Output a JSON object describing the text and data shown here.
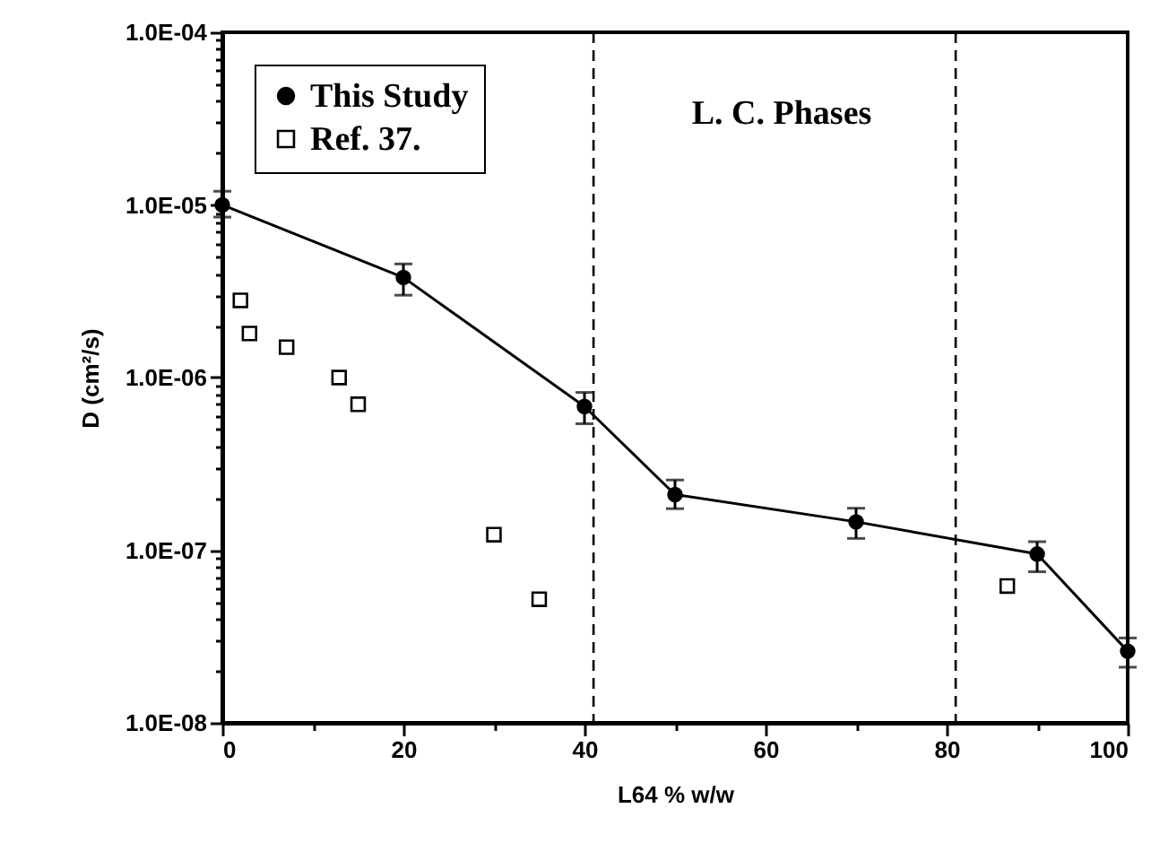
{
  "chart_data": {
    "type": "line",
    "xlabel": "L64 % w/w",
    "ylabel": "D (cm²/s)",
    "log": "y",
    "grid": false,
    "legend": "top left",
    "line_style": "solid",
    "annotations": [
      "L. C. Phases"
    ],
    "xlim": [
      0,
      100
    ],
    "xticks": [
      0,
      {
        "value": 10,
        "label": null
      },
      20,
      {
        "value": 30,
        "label": null
      },
      40,
      {
        "value": 50,
        "label": null
      },
      60,
      {
        "value": 70,
        "label": null
      },
      80,
      {
        "value": 90,
        "label": null
      },
      100
    ],
    "ylim": [
      1e-08,
      0.0001
    ],
    "yticks": [
      {
        "value": 1e-08,
        "label": "1.0E-08"
      },
      {
        "value": 2e-08,
        "label": null
      },
      {
        "value": 3e-08,
        "label": null
      },
      {
        "value": 4e-08,
        "label": null
      },
      {
        "value": 5e-08,
        "label": null
      },
      {
        "value": 6e-08,
        "label": null
      },
      {
        "value": 7e-08,
        "label": null
      },
      {
        "value": 8e-08,
        "label": null
      },
      {
        "value": 9e-08,
        "label": null
      },
      {
        "value": 1e-07,
        "label": "1.0E-07"
      },
      {
        "value": 2e-07,
        "label": null
      },
      {
        "value": 3e-07,
        "label": null
      },
      {
        "value": 4e-07,
        "label": null
      },
      {
        "value": 5e-07,
        "label": null
      },
      {
        "value": 6e-07,
        "label": null
      },
      {
        "value": 7e-07,
        "label": null
      },
      {
        "value": 8e-07,
        "label": null
      },
      {
        "value": 9e-07,
        "label": null
      },
      {
        "value": 1e-06,
        "label": "1.0E-06"
      },
      {
        "value": 2e-06,
        "label": null
      },
      {
        "value": 3e-06,
        "label": null
      },
      {
        "value": 4e-06,
        "label": null
      },
      {
        "value": 5e-06,
        "label": null
      },
      {
        "value": 6e-06,
        "label": null
      },
      {
        "value": 7e-06,
        "label": null
      },
      {
        "value": 8e-06,
        "label": null
      },
      {
        "value": 9e-06,
        "label": null
      },
      {
        "value": 1e-05,
        "label": "1.0E-05"
      },
      {
        "value": 2e-05,
        "label": null
      },
      {
        "value": 3e-05,
        "label": null
      },
      {
        "value": 4e-05,
        "label": null
      },
      {
        "value": 5e-05,
        "label": null
      },
      {
        "value": 6e-05,
        "label": null
      },
      {
        "value": 7e-05,
        "label": null
      },
      {
        "value": 8e-05,
        "label": null
      },
      {
        "value": 9e-05,
        "label": null
      },
      {
        "value": 0.0001,
        "label": "1.0E-04"
      }
    ],
    "ref_lines": [
      {
        "axis": "x",
        "value": 41,
        "label": null,
        "color": "#000000",
        "line_style": "dashed"
      },
      {
        "axis": "x",
        "value": 81,
        "label": null,
        "color": "#000000",
        "line_style": "dashed"
      }
    ],
    "series": [
      {
        "name": "This Study",
        "marker": "circle",
        "color": "#000000",
        "x": [
          0,
          20,
          40,
          50,
          70,
          90,
          100
        ],
        "values": [
          1e-05,
          3.8e-06,
          6.8e-07,
          2.1e-07,
          1.46e-07,
          9.5e-08,
          2.6e-08
        ],
        "errors": [
          [
            8.5e-06,
            1.2e-05
          ],
          [
            3e-06,
            4.55e-06
          ],
          [
            5.4e-07,
            8.2e-07
          ],
          [
            1.74e-07,
            2.55e-07
          ],
          [
            1.17e-07,
            1.75e-07
          ],
          [
            7.5e-08,
            1.12e-07
          ],
          [
            2.1e-08,
            3.1e-08
          ]
        ]
      },
      {
        "name": "Ref. 37.",
        "type": "scatter",
        "marker": "square",
        "color": "#000000",
        "x": [
          2,
          3,
          7.1,
          12.9,
          15,
          30,
          35,
          86.7
        ],
        "values": [
          2.8e-06,
          1.8e-06,
          1.5e-06,
          1e-06,
          7e-07,
          1.23e-07,
          5.2e-08,
          6.2e-08
        ]
      }
    ]
  }
}
